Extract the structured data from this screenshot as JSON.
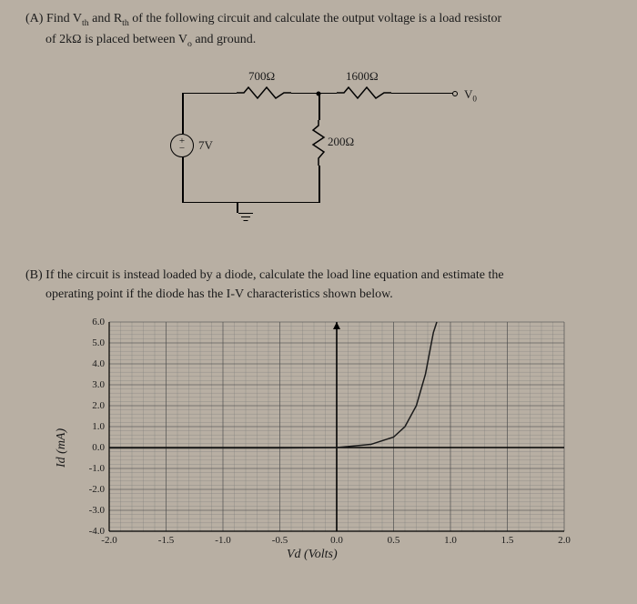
{
  "partA": {
    "prefix": "(A)",
    "text1": "Find V",
    "sub1": "th",
    "text2": " and R",
    "sub2": "th",
    "text3": " of the following circuit and calculate the output voltage is a load resistor",
    "line2a": "of 2kΩ is placed between V",
    "sub3": "o",
    "line2b": " and ground."
  },
  "circuit": {
    "r1": "700Ω",
    "r2": "1600Ω",
    "r3": "200Ω",
    "vsrc": "7V",
    "vo": "V",
    "vo_sub": "0"
  },
  "partB": {
    "prefix": "(B)",
    "text1": "If the circuit is instead loaded by a diode, calculate the load line equation and estimate the",
    "line2": "operating point if the diode has the I-V characteristics shown below."
  },
  "chart": {
    "type": "line",
    "xlabel": "Vd (Volts)",
    "ylabel": "Id (mA)",
    "xlim": [
      -2.0,
      2.0
    ],
    "ylim": [
      -4.0,
      6.0
    ],
    "xtick_step": 0.5,
    "ytick_step": 1.0,
    "xticks": [
      "-2.0",
      "-1.5",
      "-1.0",
      "-0.5",
      "0.0",
      "0.5",
      "1.0",
      "1.5",
      "2.0"
    ],
    "yticks": [
      "6.0",
      "5.0",
      "4.0",
      "3.0",
      "2.0",
      "1.0",
      "0.0",
      "-1.0",
      "-2.0",
      "-3.0",
      "-4.0"
    ],
    "curve_points": [
      [
        -2.0,
        -0.02
      ],
      [
        -1.0,
        -0.02
      ],
      [
        -0.5,
        -0.02
      ],
      [
        0.0,
        0.0
      ],
      [
        0.3,
        0.15
      ],
      [
        0.5,
        0.5
      ],
      [
        0.6,
        1.0
      ],
      [
        0.7,
        2.0
      ],
      [
        0.78,
        3.5
      ],
      [
        0.85,
        5.5
      ],
      [
        0.88,
        6.0
      ]
    ],
    "curve_color": "#1a1a1a",
    "curve_width": 1.5,
    "grid_major_color": "#4a4a4a",
    "grid_minor_color": "#7a7a7a",
    "axis_color": "#000000",
    "background_color": "#b8afa3",
    "label_fontsize": 14,
    "tick_fontsize": 11,
    "minor_per_major": 5
  }
}
